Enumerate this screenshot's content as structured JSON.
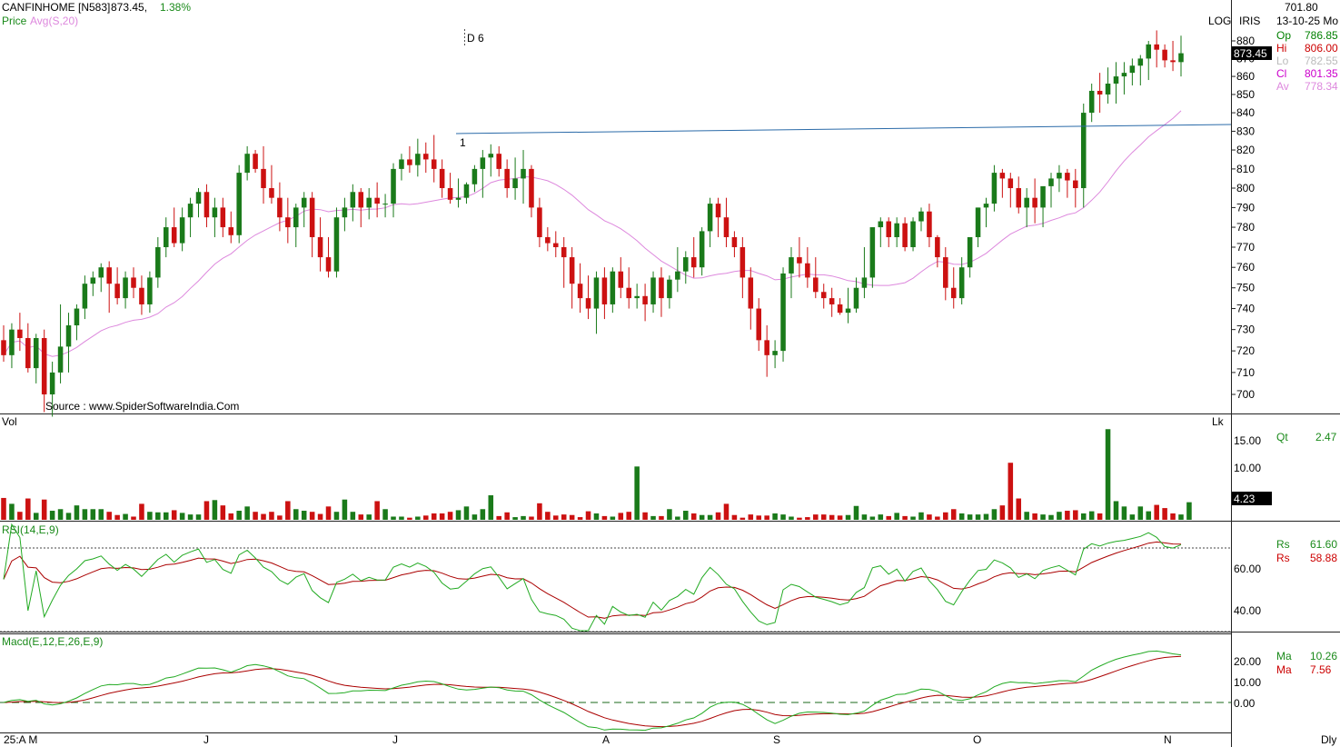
{
  "header": {
    "symbol": "CANFINHOME [N583]",
    "price": "873.45,",
    "change": "1.38%",
    "line2_label": "Price",
    "line2_avg": "Avg(S,20)",
    "d_marker": "D 6",
    "log_label": "LOG",
    "iris_label": "IRIS",
    "source": "Source : www.SpiderSoftwareIndia.Com",
    "point_marker": "1"
  },
  "info_panel": {
    "value": "701.80",
    "date": "13-10-25 Mo",
    "rows": [
      {
        "label": "Op",
        "value": "786.85",
        "color": "#008000"
      },
      {
        "label": "Hi",
        "value": "806.00",
        "color": "#cc0000"
      },
      {
        "label": "Lo",
        "value": "782.55",
        "color": "#bbbbbb"
      },
      {
        "label": "Cl",
        "value": "801.35",
        "color": "#cc00cc"
      },
      {
        "label": "Av",
        "value": "778.34",
        "color": "#dd88dd"
      }
    ]
  },
  "volume_panel": {
    "title": "Vol",
    "lk": "Lk",
    "qt_label": "Qt",
    "qt_value": "2.47",
    "last_value": "4.23",
    "ticks": [
      "15.00",
      "10.00"
    ]
  },
  "rsi_panel": {
    "title": "RSI(14,E,9)",
    "ticks": [
      "60.00",
      "40.00"
    ],
    "rows": [
      {
        "label": "Rs",
        "value": "61.60",
        "color": "#008000"
      },
      {
        "label": "Rs",
        "value": "58.88",
        "color": "#cc0000"
      }
    ]
  },
  "macd_panel": {
    "title": "Macd(E,12,E,26,E,9)",
    "ticks": [
      "20.00",
      "10.00",
      "0.00"
    ],
    "rows": [
      {
        "label": "Ma",
        "value": "10.26",
        "color": "#008000"
      },
      {
        "label": "Ma",
        "value": "7.56",
        "color": "#cc0000"
      }
    ]
  },
  "xaxis": {
    "labels": [
      "25:A M",
      "J",
      "J",
      "A",
      "S",
      "O",
      "N"
    ],
    "dly": "Dly"
  },
  "price_axis": {
    "ticks": [
      "880",
      "870",
      "860",
      "850",
      "840",
      "830",
      "820",
      "810",
      "800",
      "790",
      "780",
      "770",
      "760",
      "750",
      "740",
      "730",
      "720",
      "710",
      "700"
    ],
    "last_price": "873.45"
  },
  "colors": {
    "up": "#1a7a1a",
    "down": "#cc1111",
    "ma": "#dd88dd",
    "trendline": "#2a6aa8",
    "rsi": "#22aa22",
    "rsi_signal": "#aa0000"
  },
  "chart_data": {
    "type": "candlestick",
    "scale": "log",
    "ohlc": [
      [
        725,
        732,
        715,
        718
      ],
      [
        718,
        733,
        712,
        730
      ],
      [
        730,
        738,
        720,
        726
      ],
      [
        726,
        733,
        710,
        712
      ],
      [
        712,
        728,
        705,
        726
      ],
      [
        726,
        730,
        692,
        700
      ],
      [
        700,
        715,
        690,
        710
      ],
      [
        710,
        742,
        705,
        722
      ],
      [
        722,
        738,
        710,
        732
      ],
      [
        732,
        742,
        725,
        740
      ],
      [
        740,
        756,
        735,
        752
      ],
      [
        752,
        758,
        746,
        755
      ],
      [
        755,
        762,
        748,
        760
      ],
      [
        760,
        763,
        738,
        752
      ],
      [
        752,
        760,
        742,
        745
      ],
      [
        745,
        758,
        740,
        755
      ],
      [
        755,
        760,
        745,
        750
      ],
      [
        750,
        756,
        737,
        742
      ],
      [
        742,
        758,
        738,
        755
      ],
      [
        755,
        775,
        750,
        770
      ],
      [
        770,
        785,
        765,
        780
      ],
      [
        780,
        790,
        770,
        772
      ],
      [
        772,
        790,
        768,
        785
      ],
      [
        785,
        795,
        775,
        792
      ],
      [
        792,
        800,
        785,
        798
      ],
      [
        798,
        802,
        780,
        785
      ],
      [
        785,
        795,
        775,
        790
      ],
      [
        790,
        795,
        775,
        780
      ],
      [
        780,
        788,
        772,
        776
      ],
      [
        776,
        812,
        772,
        808
      ],
      [
        808,
        822,
        804,
        818
      ],
      [
        818,
        820,
        808,
        810
      ],
      [
        810,
        822,
        792,
        800
      ],
      [
        800,
        812,
        792,
        795
      ],
      [
        795,
        803,
        778,
        785
      ],
      [
        785,
        795,
        772,
        780
      ],
      [
        780,
        792,
        770,
        790
      ],
      [
        790,
        798,
        780,
        795
      ],
      [
        795,
        798,
        765,
        775
      ],
      [
        775,
        785,
        758,
        765
      ],
      [
        765,
        775,
        755,
        758
      ],
      [
        758,
        790,
        755,
        785
      ],
      [
        785,
        795,
        778,
        790
      ],
      [
        790,
        802,
        783,
        798
      ],
      [
        798,
        800,
        780,
        790
      ],
      [
        790,
        800,
        784,
        795
      ],
      [
        795,
        803,
        785,
        792
      ],
      [
        792,
        797,
        785,
        792
      ],
      [
        792,
        813,
        785,
        810
      ],
      [
        810,
        818,
        804,
        815
      ],
      [
        815,
        822,
        808,
        812
      ],
      [
        812,
        826,
        806,
        818
      ],
      [
        818,
        824,
        808,
        815
      ],
      [
        815,
        828,
        803,
        810
      ],
      [
        810,
        815,
        795,
        800
      ],
      [
        800,
        808,
        792,
        794
      ],
      [
        794,
        805,
        790,
        795
      ],
      [
        795,
        803,
        792,
        802
      ],
      [
        802,
        812,
        798,
        810
      ],
      [
        810,
        820,
        795,
        816
      ],
      [
        816,
        823,
        806,
        818
      ],
      [
        818,
        822,
        806,
        810
      ],
      [
        810,
        815,
        795,
        800
      ],
      [
        800,
        816,
        794,
        805
      ],
      [
        805,
        820,
        792,
        810
      ],
      [
        810,
        812,
        785,
        790
      ],
      [
        790,
        795,
        770,
        775
      ],
      [
        775,
        780,
        768,
        772
      ],
      [
        772,
        778,
        765,
        770
      ],
      [
        770,
        775,
        750,
        765
      ],
      [
        765,
        770,
        740,
        752
      ],
      [
        752,
        762,
        738,
        745
      ],
      [
        745,
        756,
        735,
        740
      ],
      [
        740,
        758,
        728,
        755
      ],
      [
        755,
        760,
        735,
        742
      ],
      [
        742,
        760,
        738,
        758
      ],
      [
        758,
        765,
        745,
        750
      ],
      [
        750,
        760,
        740,
        745
      ],
      [
        745,
        752,
        740,
        746
      ],
      [
        746,
        752,
        734,
        742
      ],
      [
        742,
        758,
        738,
        755
      ],
      [
        755,
        760,
        736,
        745
      ],
      [
        745,
        756,
        740,
        754
      ],
      [
        754,
        770,
        748,
        758
      ],
      [
        758,
        768,
        752,
        765
      ],
      [
        765,
        775,
        755,
        760
      ],
      [
        760,
        780,
        756,
        778
      ],
      [
        778,
        795,
        770,
        792
      ],
      [
        792,
        795,
        775,
        785
      ],
      [
        785,
        795,
        770,
        775
      ],
      [
        775,
        778,
        765,
        770
      ],
      [
        770,
        775,
        745,
        755
      ],
      [
        755,
        760,
        730,
        740
      ],
      [
        740,
        745,
        720,
        725
      ],
      [
        725,
        732,
        708,
        718
      ],
      [
        718,
        725,
        712,
        720
      ],
      [
        720,
        760,
        715,
        757
      ],
      [
        757,
        770,
        745,
        765
      ],
      [
        765,
        775,
        755,
        762
      ],
      [
        762,
        770,
        750,
        755
      ],
      [
        755,
        765,
        745,
        748
      ],
      [
        748,
        752,
        740,
        745
      ],
      [
        745,
        750,
        736,
        742
      ],
      [
        742,
        745,
        737,
        738
      ],
      [
        738,
        750,
        733,
        740
      ],
      [
        740,
        755,
        738,
        750
      ],
      [
        750,
        770,
        745,
        755
      ],
      [
        755,
        780,
        750,
        780
      ],
      [
        780,
        785,
        770,
        783
      ],
      [
        783,
        785,
        770,
        775
      ],
      [
        775,
        785,
        770,
        782
      ],
      [
        782,
        785,
        768,
        770
      ],
      [
        770,
        785,
        768,
        783
      ],
      [
        783,
        790,
        778,
        788
      ],
      [
        788,
        792,
        770,
        775
      ],
      [
        775,
        776,
        760,
        765
      ],
      [
        765,
        770,
        744,
        750
      ],
      [
        750,
        760,
        740,
        745
      ],
      [
        745,
        765,
        742,
        760
      ],
      [
        760,
        775,
        755,
        775
      ],
      [
        775,
        790,
        770,
        790
      ],
      [
        790,
        795,
        780,
        792
      ],
      [
        792,
        812,
        788,
        808
      ],
      [
        808,
        810,
        795,
        805
      ],
      [
        805,
        808,
        790,
        800
      ],
      [
        800,
        806,
        787,
        790
      ],
      [
        790,
        800,
        780,
        795
      ],
      [
        795,
        805,
        782,
        790
      ],
      [
        790,
        800,
        780,
        801
      ],
      [
        801,
        808,
        790,
        805
      ],
      [
        805,
        812,
        798,
        808
      ],
      [
        808,
        810,
        795,
        804
      ],
      [
        804,
        810,
        790,
        800
      ],
      [
        800,
        845,
        790,
        840
      ],
      [
        840,
        856,
        835,
        852
      ],
      [
        852,
        862,
        840,
        850
      ],
      [
        850,
        865,
        845,
        856
      ],
      [
        856,
        868,
        845,
        860
      ],
      [
        860,
        868,
        850,
        862
      ],
      [
        862,
        870,
        855,
        866
      ],
      [
        866,
        872,
        855,
        870
      ],
      [
        870,
        880,
        858,
        878
      ],
      [
        878,
        886,
        865,
        875
      ],
      [
        875,
        878,
        865,
        869
      ],
      [
        869,
        880,
        863,
        868
      ],
      [
        868,
        883,
        860,
        873
      ]
    ],
    "volume": [
      4.1,
      3.0,
      1.5,
      4.0,
      1.3,
      3.8,
      1.7,
      2.0,
      1.3,
      2.7,
      2.0,
      2.0,
      2.0,
      1.5,
      0.9,
      1.1,
      0.6,
      3.0,
      1.5,
      1.4,
      1.4,
      1.8,
      1.3,
      1.0,
      1.0,
      3.5,
      3.7,
      2.7,
      1.2,
      1.7,
      2.5,
      1.5,
      1.1,
      1.5,
      0.8,
      3.5,
      2.0,
      1.7,
      1.5,
      1.1,
      2.5,
      1.5,
      3.8,
      1.5,
      1.0,
      1.0,
      3.5,
      2.0,
      0.6,
      0.6,
      0.4,
      0.6,
      0.8,
      1.2,
      1.2,
      1.5,
      1.8,
      2.5,
      1.0,
      2.0,
      4.6,
      0.7,
      1.4,
      0.5,
      0.7,
      0.6,
      3.1,
      1.5,
      0.8,
      1.0,
      0.9,
      0.5,
      1.6,
      1.2,
      0.7,
      0.6,
      1.3,
      1.5,
      10.0,
      1.4,
      0.7,
      0.7,
      2.0,
      0.6,
      1.7,
      1.2,
      0.9,
      0.9,
      1.4,
      3.0,
      0.9,
      0.4,
      1.0,
      0.8,
      0.8,
      1.2,
      1.0,
      0.6,
      0.4,
      0.5,
      1.0,
      1.0,
      0.9,
      0.8,
      0.9,
      2.6,
      1.0,
      0.6,
      1.0,
      0.7,
      1.3,
      0.7,
      0.6,
      1.4,
      1.0,
      0.6,
      1.4,
      2.0,
      1.2,
      1.0,
      1.0,
      1.1,
      2.0,
      2.7,
      10.7,
      4.0,
      1.5,
      1.2,
      1.0,
      0.9,
      1.5,
      1.7,
      1.8,
      1.2,
      1.6,
      1.2,
      17.0,
      3.5,
      2.5,
      1.0,
      2.5,
      1.6,
      2.8,
      2.2,
      1.2,
      1.0,
      3.3
    ]
  }
}
